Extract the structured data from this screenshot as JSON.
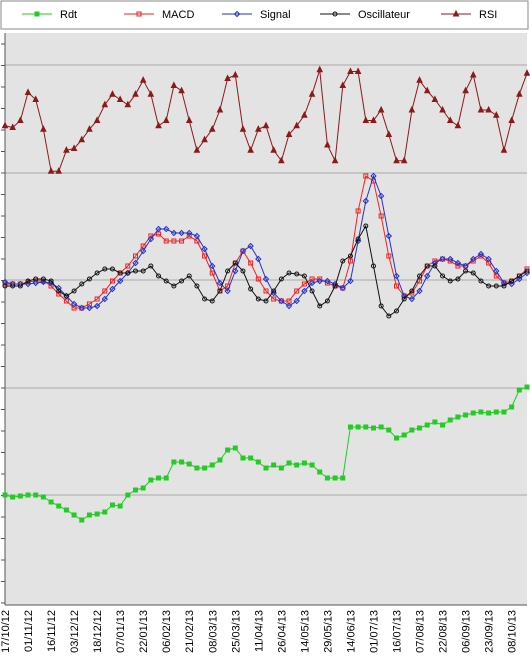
{
  "chart_data": [
    {
      "type": "line",
      "series": [
        {
          "name": "RSI",
          "color": "#8b1a1a",
          "marker": "triangle",
          "values": [
            47,
            46,
            50,
            66,
            62,
            45,
            21,
            21,
            33,
            34,
            39,
            45,
            50,
            59,
            65,
            62,
            59,
            65,
            73,
            65,
            47,
            50,
            70,
            67,
            50,
            33,
            39,
            45,
            56,
            74,
            76,
            45,
            33,
            45,
            47,
            33,
            27,
            42,
            47,
            53,
            65,
            79,
            36,
            27,
            70,
            78,
            78,
            50,
            50,
            56,
            42,
            27,
            27,
            56,
            73,
            67,
            62,
            56,
            50,
            47,
            67,
            76,
            56,
            56,
            53,
            33,
            50,
            65,
            77
          ]
        }
      ],
      "ylim": [
        20,
        100
      ]
    },
    {
      "type": "line",
      "series": [
        {
          "name": "MACD",
          "color": "#ee2222",
          "marker": "square",
          "values": [
            -3,
            -3,
            -3,
            -1,
            0,
            0,
            -5,
            -13,
            -20,
            -27,
            -27,
            -23,
            -18,
            -10,
            0,
            8,
            15,
            25,
            35,
            45,
            47,
            40,
            40,
            40,
            45,
            40,
            25,
            8,
            -10,
            -5,
            18,
            30,
            18,
            2,
            -10,
            -18,
            -20,
            -20,
            -10,
            -3,
            2,
            2,
            -2,
            -5,
            -7,
            20,
            70,
            105,
            100,
            65,
            25,
            -5,
            -15,
            -12,
            0,
            15,
            20,
            22,
            20,
            15,
            15,
            20,
            25,
            18,
            5,
            -2,
            0,
            5,
            12
          ]
        },
        {
          "name": "Signal",
          "color": "#2233cc",
          "marker": "diamond",
          "values": [
            -1,
            -3,
            -3,
            -3,
            -2,
            -1,
            -2,
            -7,
            -15,
            -23,
            -27,
            -27,
            -25,
            -18,
            -8,
            0,
            8,
            18,
            30,
            42,
            52,
            52,
            48,
            48,
            48,
            45,
            32,
            15,
            -2,
            -10,
            10,
            30,
            35,
            22,
            2,
            -12,
            -20,
            -25,
            -20,
            -10,
            -2,
            0,
            0,
            -3,
            -7,
            0,
            40,
            80,
            105,
            85,
            45,
            5,
            -15,
            -18,
            -10,
            5,
            18,
            22,
            22,
            18,
            15,
            22,
            27,
            22,
            10,
            -2,
            -3,
            2,
            8
          ]
        },
        {
          "name": "Oscillateur",
          "color": "#111111",
          "marker": "circle",
          "values": [
            -5,
            -5,
            -5,
            0,
            2,
            2,
            0,
            -10,
            -15,
            -10,
            -3,
            2,
            8,
            12,
            12,
            8,
            8,
            10,
            10,
            15,
            5,
            0,
            -5,
            0,
            5,
            -5,
            -18,
            -20,
            -10,
            10,
            18,
            10,
            -8,
            -18,
            -20,
            -10,
            2,
            8,
            7,
            5,
            -10,
            -25,
            -20,
            -5,
            20,
            25,
            42,
            55,
            15,
            -25,
            -35,
            -30,
            -18,
            -10,
            5,
            15,
            15,
            5,
            0,
            2,
            10,
            8,
            0,
            -5,
            -5,
            -5,
            0,
            5,
            10
          ]
        }
      ],
      "ylim": [
        -107,
        108
      ]
    },
    {
      "type": "line",
      "series": [
        {
          "name": "Rdt",
          "color": "#22cc22",
          "marker": "square",
          "values": [
            0,
            -2,
            -1,
            0,
            0,
            -2,
            -7,
            -11,
            -15,
            -20,
            -25,
            -20,
            -19,
            -17,
            -10,
            -11,
            0,
            5,
            7,
            15,
            17,
            17,
            33,
            33,
            31,
            27,
            27,
            30,
            35,
            45,
            47,
            37,
            37,
            33,
            27,
            30,
            27,
            32,
            30,
            32,
            30,
            23,
            17,
            17,
            17,
            68,
            68,
            68,
            67,
            68,
            65,
            57,
            60,
            65,
            67,
            70,
            73,
            70,
            75,
            78,
            80,
            82,
            83,
            82,
            83,
            83,
            88,
            105,
            108
          ]
        }
      ],
      "ylim": [
        -110,
        110
      ],
      "categories": [
        "17/10/12",
        null,
        null,
        "01/11/12",
        null,
        null,
        "16/11/12",
        null,
        null,
        "03/12/12",
        null,
        null,
        "18/12/12",
        null,
        null,
        "07/01/13",
        null,
        null,
        "22/01/13",
        null,
        null,
        "06/02/13",
        null,
        null,
        "21/02/13",
        null,
        null,
        "08/03/13",
        null,
        null,
        "25/03/13",
        null,
        null,
        "11/04/13",
        null,
        null,
        "26/04/13",
        null,
        null,
        "14/05/13",
        null,
        null,
        "29/05/13",
        null,
        null,
        "14/06/13",
        null,
        null,
        "01/07/13",
        null,
        null,
        "16/07/13",
        null,
        null,
        "07/08/13",
        null,
        null,
        "22/08/13",
        null,
        null,
        "06/09/13",
        null,
        null,
        "23/09/13",
        null,
        null,
        "08/10/13",
        null,
        null
      ]
    }
  ]
}
